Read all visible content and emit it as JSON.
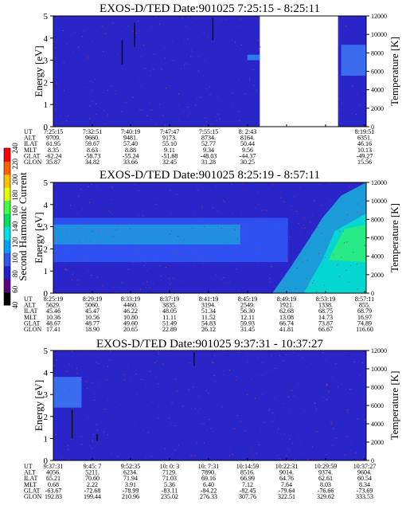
{
  "chart_data": [
    {
      "type": "heatmap",
      "title": "EXOS-D/TED   Date:901025  7:25:15 - 8:25:11",
      "ylabel": "Energy [eV]",
      "ylabel_right": "Temperature [K]",
      "ylim": [
        0,
        5
      ],
      "ylim_right": [
        0,
        12000
      ],
      "yticks": [
        "0",
        "1",
        "2",
        "3",
        "4",
        "5"
      ],
      "yticks_right": [
        "0",
        "2000",
        "4000",
        "6000",
        "8000",
        "10000",
        "12000"
      ],
      "data_gap": [
        0.66,
        0.91
      ],
      "band": {
        "from_frac": 0.92,
        "to_frac": 1.0,
        "low": 2.3,
        "high": 3.7
      },
      "spikes": [
        {
          "x": 0.26,
          "y0": 3.6,
          "y1": 4.7
        },
        {
          "x": 0.51,
          "y0": 3.9,
          "y1": 4.9
        },
        {
          "x": 0.22,
          "y0": 2.8,
          "y1": 3.9
        }
      ],
      "rows": [
        {
          "label": "UT",
          "values": [
            "7:25:15",
            "7:32:51",
            "7:40:19",
            "7:47:47",
            "7:55:15",
            "8: 2:43",
            "",
            "",
            "8:19:51"
          ]
        },
        {
          "label": "ALT",
          "values": [
            "9709.",
            "9660.",
            "9481.",
            "9173.",
            "8734.",
            "8164.",
            "",
            "",
            "6351."
          ]
        },
        {
          "label": "ILAT",
          "values": [
            "61.95",
            "59.67",
            "57.40",
            "55.10",
            "52.77",
            "50.44",
            "",
            "",
            "46.16"
          ]
        },
        {
          "label": "MLT",
          "values": [
            "8.35",
            "8.63",
            "8.88",
            "9.11",
            "9.34",
            "9.56",
            "",
            "",
            "10.13"
          ]
        },
        {
          "label": "GLAT",
          "values": [
            "-62.24",
            "-58.73",
            "-55.24",
            "-51.68",
            "-48.03",
            "-44.37",
            "",
            "",
            "-49.27"
          ]
        },
        {
          "label": "GLON",
          "values": [
            "35.87",
            "34.82",
            "33.66",
            "32.45",
            "31.28",
            "30.25",
            "",
            "",
            "15.56"
          ]
        }
      ]
    },
    {
      "type": "heatmap",
      "title": "EXOS-D/TED   Date:901025  8:25:19 - 8:57:11",
      "ylabel": "Energy [eV]",
      "ylabel_right": "Temperature [K]",
      "ylim": [
        0,
        5
      ],
      "ylim_right": [
        0,
        12000
      ],
      "yticks": [
        "0",
        "1",
        "2",
        "3",
        "4",
        "5"
      ],
      "yticks_right": [
        "0",
        "2000",
        "4000",
        "6000",
        "8000",
        "10000",
        "12000"
      ],
      "colorbar": {
        "label": "Second Harmonic Current",
        "ticks": [
          "40",
          "60",
          "80",
          "100",
          "120",
          "140",
          "160",
          "180",
          "200",
          "220",
          "240"
        ],
        "colors": [
          "#000000",
          "#5a0080",
          "#2020d0",
          "#2f54f0",
          "#00a0ff",
          "#00e0e0",
          "#00e060",
          "#40ff40",
          "#e0ff00",
          "#ffc000",
          "#ff6000",
          "#ff0000"
        ]
      },
      "band": {
        "from_frac": 0.0,
        "to_frac": 0.75,
        "low": 1.4,
        "high": 3.4
      },
      "rows": [
        {
          "label": "UT",
          "values": [
            "8:25:19",
            "8:29:19",
            "8:33:19",
            "8:37:19",
            "8:41:19",
            "8:45:19",
            "8:49:19",
            "8:53:19",
            "8:57:11"
          ]
        },
        {
          "label": "ALT",
          "values": [
            "5629.",
            "5060.",
            "4460.",
            "3835.",
            "3194.",
            "2549.",
            "1921.",
            "1338.",
            "855."
          ]
        },
        {
          "label": "ILAT",
          "values": [
            "45.46",
            "45.47",
            "46.22",
            "48.05",
            "51.34",
            "56.30",
            "62.68",
            "68.75",
            "68.79"
          ]
        },
        {
          "label": "MLT",
          "values": [
            "10.36",
            "10.56",
            "10.80",
            "11.11",
            "11.52",
            "12.11",
            "13.08",
            "14.73",
            "16.97"
          ]
        },
        {
          "label": "GLAT",
          "values": [
            "48.67",
            "48.77",
            "49.60",
            "51.49",
            "54.83",
            "59.93",
            "66.74",
            "73.87",
            "74.89"
          ]
        },
        {
          "label": "GLON",
          "values": [
            "17.41",
            "18.90",
            "20.65",
            "22.89",
            "26.12",
            "31.45",
            "41.81",
            "66.67",
            "116.60"
          ]
        }
      ]
    },
    {
      "type": "heatmap",
      "title": "EXOS-D/TED   Date:901025  9:37:31 - 10:37:27",
      "ylabel": "Energy [eV]",
      "ylabel_right": "Temperature [K]",
      "ylim": [
        0,
        5
      ],
      "ylim_right": [
        0,
        12000
      ],
      "yticks": [
        "0",
        "1",
        "2",
        "3",
        "4",
        "5"
      ],
      "yticks_right": [
        "0",
        "2000",
        "4000",
        "6000",
        "8000",
        "10000",
        "12000"
      ],
      "band": {
        "from_frac": 0.0,
        "to_frac": 0.09,
        "low": 2.4,
        "high": 3.8
      },
      "spikes": [
        {
          "x": 0.06,
          "y0": 1.0,
          "y1": 2.3
        },
        {
          "x": 0.45,
          "y0": 4.3,
          "y1": 4.9
        },
        {
          "x": 0.14,
          "y0": 0.9,
          "y1": 1.2
        }
      ],
      "rows": [
        {
          "label": "UT",
          "values": [
            "9:37:31",
            "9:45: 7",
            "9:52:35",
            "10: 0: 3",
            "10: 7:31",
            "10:14:59",
            "10:22:31",
            "10:29:59",
            "10:37:27"
          ]
        },
        {
          "label": "ALT",
          "values": [
            "4056.",
            "5211.",
            "6234.",
            "7129.",
            "7890.",
            "8516.",
            "9014.",
            "9374.",
            "9604."
          ]
        },
        {
          "label": "ILAT",
          "values": [
            "65.21",
            "70.60",
            "71.94",
            "71.03",
            "69.16",
            "66.99",
            "64.76",
            "62.61",
            "60.54"
          ]
        },
        {
          "label": "MLT",
          "values": [
            "0.68",
            "2.22",
            "3.91",
            "5.36",
            "6.40",
            "7.12",
            "7.64",
            "8.03",
            "8.34"
          ]
        },
        {
          "label": "GLAT",
          "values": [
            "-63.67",
            "-72.68",
            "-78.99",
            "-83.11",
            "-84.22",
            "-82.45",
            "-79.64",
            "-76.66",
            "-73.69"
          ]
        },
        {
          "label": "GLON",
          "values": [
            "192.83",
            "199.44",
            "210.96",
            "235.02",
            "276.33",
            "307.76",
            "322.51",
            "329.62",
            "333.53"
          ]
        }
      ]
    }
  ]
}
